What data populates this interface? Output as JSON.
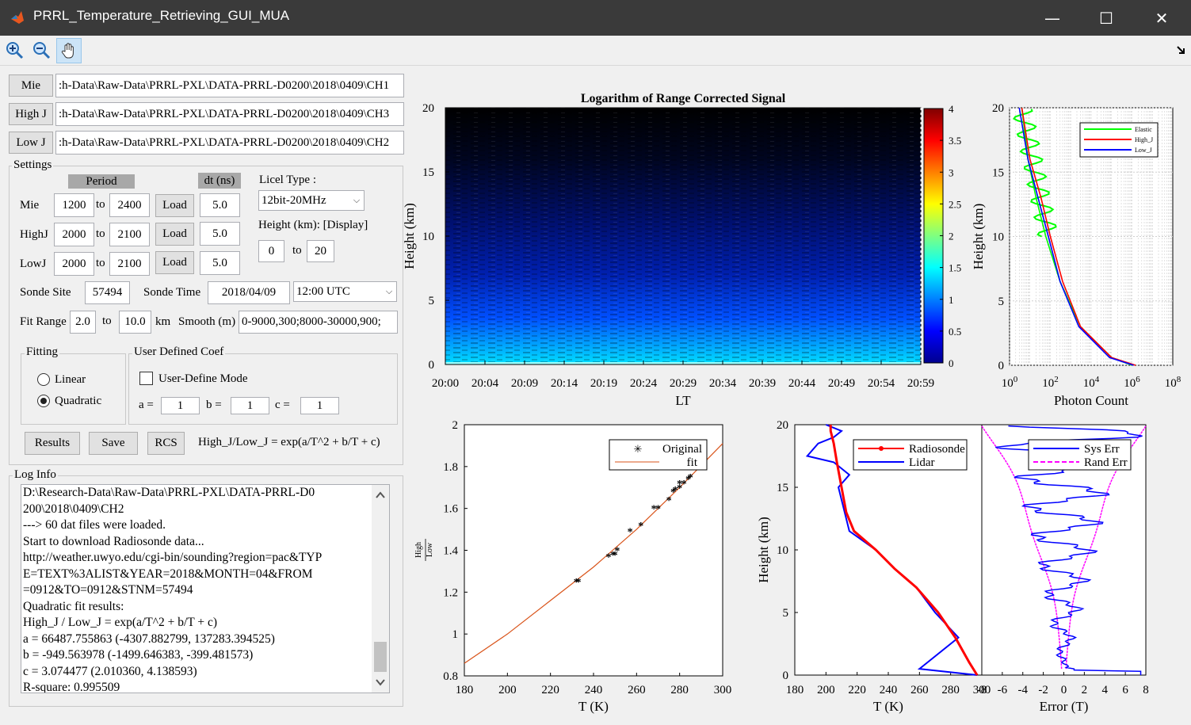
{
  "window": {
    "title": "PRRL_Temperature_Retrieving_GUI_MUA",
    "minimize": "—",
    "maximize": "☐",
    "close": "✕"
  },
  "toolbar": {
    "icons": [
      "zoom-in-icon",
      "zoom-out-icon",
      "pan-hand-icon"
    ]
  },
  "files": [
    {
      "button": "Mie",
      "path": ":h-Data\\Raw-Data\\PRRL-PXL\\DATA-PRRL-D0200\\2018\\0409\\CH1"
    },
    {
      "button": "High J",
      "path": ":h-Data\\Raw-Data\\PRRL-PXL\\DATA-PRRL-D0200\\2018\\0409\\CH3"
    },
    {
      "button": "Low J",
      "path": ":h-Data\\Raw-Data\\PRRL-PXL\\DATA-PRRL-D0200\\2018\\0409\\CH2"
    }
  ],
  "settings": {
    "title": "Settings",
    "period_header": "Period",
    "dt_header": "dt (ns)",
    "to": "to",
    "load_label": "Load",
    "rows": [
      {
        "label": "Mie",
        "from": "1200",
        "to": "2400",
        "dt": "5.0"
      },
      {
        "label": "HighJ",
        "from": "2000",
        "to": "2100",
        "dt": "5.0"
      },
      {
        "label": "LowJ",
        "from": "2000",
        "to": "2100",
        "dt": "5.0"
      }
    ],
    "licel_type_label": "Licel Type :",
    "licel_type_value": "12bit-20MHz",
    "height_label": "Height (km): [Display]",
    "height_from": "0",
    "height_to_label": "to",
    "height_to": "20",
    "sonde_site_label": "Sonde Site",
    "sonde_site": "57494",
    "sonde_time_label": "Sonde Time",
    "sonde_date": "2018/04/09",
    "sonde_hour": "12:00 UTC",
    "fit_range_label": "Fit Range",
    "fit_from": "2.0",
    "fit_to_label": "to",
    "fit_to": "10.0",
    "km_label": "km",
    "smooth_label": "Smooth (m)",
    "smooth_value": "0-9000,300;8000-30000,900;",
    "fitting_title": "Fitting",
    "linear_label": "Linear",
    "quadratic_label": "Quadratic",
    "udc_title": "User Defined Coef",
    "user_define_mode": "User-Define Mode",
    "a_label": "a =",
    "a_value": "1",
    "b_label": "b =",
    "b_value": "1",
    "c_label": "c =",
    "c_value": "1",
    "results_button": "Results",
    "save_button": "Save",
    "rcs_button": "RCS",
    "formula": "High_J/Low_J = exp(a/T^2 + b/T + c)"
  },
  "log": {
    "title": "Log Info",
    "lines": [
      "D:\\Research-Data\\Raw-Data\\PRRL-PXL\\DATA-PRRL-D0",
      "200\\2018\\0409\\CH2",
      "--->  60 dat files were loaded.",
      "Start to download Radiosonde data...",
      "http://weather.uwyo.edu/cgi-bin/sounding?region=pac&TYP",
      "E=TEXT%3ALIST&YEAR=2018&MONTH=04&FROM",
      "=0912&TO=0912&STNM=57494",
      "Quadratic fit results:",
      "High_J / Low_J = exp(a/T^2 + b/T + c)",
      "a = 66487.755863 (-4307.882799, 137283.394525)",
      "b = -949.563978 (-1499.646383, -399.481573)",
      "c = 3.074477 (2.010360, 4.138593)",
      "R-square: 0.995509"
    ]
  },
  "chart_data": [
    {
      "type": "heatmap",
      "title": "Logarithm of Range Corrected Signal",
      "xlabel": "LT",
      "ylabel": "Height (km)",
      "x_ticks": [
        "20:00",
        "20:04",
        "20:09",
        "20:14",
        "20:19",
        "20:24",
        "20:29",
        "20:34",
        "20:39",
        "20:44",
        "20:49",
        "20:54",
        "20:59"
      ],
      "y_ticks": [
        "0",
        "5",
        "10",
        "15",
        "20"
      ],
      "ylim": [
        0,
        20
      ],
      "colorbar_ticks": [
        "0",
        "0.5",
        "1",
        "1.5",
        "2",
        "2.5",
        "3",
        "3.5",
        "4"
      ],
      "clim": [
        0,
        4
      ],
      "colormap": "jet"
    },
    {
      "type": "line",
      "xlabel": "Photon Count",
      "ylabel": "Height (km)",
      "x_scale": "log",
      "xlim": [
        1,
        100000000
      ],
      "ylim": [
        0,
        20
      ],
      "x_ticks": [
        "10^0",
        "10^2",
        "10^4",
        "10^6",
        "10^8"
      ],
      "y_ticks": [
        "0",
        "5",
        "10",
        "15",
        "20"
      ],
      "legend_placement": "top-right",
      "series": [
        {
          "name": "Elastic",
          "color": "#00ff00",
          "x": [
            1000000,
            100000,
            3000,
            300,
            60,
            20,
            8,
            4
          ],
          "y": [
            0,
            0.6,
            3,
            6.5,
            10,
            13,
            16,
            20
          ]
        },
        {
          "name": "High_J",
          "color": "#ff0000",
          "x": [
            1500000,
            100000,
            3000,
            400,
            100,
            35,
            10,
            4
          ],
          "y": [
            0,
            0.6,
            3,
            6.5,
            10,
            13,
            16,
            20
          ]
        },
        {
          "name": "Low_J",
          "color": "#0000ff",
          "x": [
            1200000,
            80000,
            2500,
            300,
            80,
            25,
            8,
            3
          ],
          "y": [
            0,
            0.6,
            3,
            6.5,
            10,
            13,
            16,
            20
          ]
        }
      ]
    },
    {
      "type": "scatter",
      "xlabel": "T (K)",
      "ylabel": "High_J / Low_J",
      "xlim": [
        180,
        300
      ],
      "ylim": [
        0.8,
        2
      ],
      "x_ticks": [
        "180",
        "200",
        "220",
        "240",
        "260",
        "280",
        "300"
      ],
      "y_ticks": [
        "0.8",
        "1",
        "1.2",
        "1.4",
        "1.6",
        "1.8",
        "2"
      ],
      "legend_placement": "top-right",
      "series": [
        {
          "name": "Original",
          "marker": "*",
          "color": "#000000",
          "x": [
            232,
            233,
            247,
            249,
            250,
            251,
            257,
            262,
            268,
            270,
            275,
            277,
            278,
            280,
            280,
            282,
            284,
            285
          ],
          "y": [
            1.25,
            1.25,
            1.37,
            1.38,
            1.38,
            1.4,
            1.49,
            1.52,
            1.6,
            1.6,
            1.64,
            1.68,
            1.69,
            1.7,
            1.72,
            1.72,
            1.74,
            1.75
          ]
        },
        {
          "name": "fit",
          "color": "#d95319",
          "x": [
            180,
            200,
            220,
            240,
            260,
            280,
            300
          ],
          "y": [
            0.86,
            1.0,
            1.16,
            1.32,
            1.5,
            1.7,
            1.91
          ]
        }
      ]
    },
    {
      "type": "line",
      "xlabel": "T (K)",
      "ylabel": "Height (km)",
      "xlim": [
        180,
        300
      ],
      "ylim": [
        0,
        20
      ],
      "x_ticks": [
        "180",
        "200",
        "220",
        "240",
        "260",
        "280",
        "300"
      ],
      "y_ticks": [
        "0",
        "5",
        "10",
        "15",
        "20"
      ],
      "legend_placement": "top-right",
      "series": [
        {
          "name": "Radiosonde",
          "color": "#ff0000",
          "x": [
            297,
            292,
            283,
            272,
            258,
            244,
            232,
            218,
            213,
            210,
            207,
            205,
            203,
            203
          ],
          "y": [
            0,
            1,
            3,
            5,
            7,
            8.5,
            10,
            11.5,
            13,
            15,
            17,
            18.5,
            19.5,
            20
          ]
        },
        {
          "name": "Lidar",
          "color": "#0000ff",
          "x": [
            297,
            260,
            285,
            270,
            258,
            244,
            232,
            215,
            212,
            208,
            215,
            205,
            188,
            195,
            205,
            210,
            200
          ],
          "y": [
            0,
            0.5,
            3,
            5,
            7,
            8.5,
            10,
            11.5,
            13,
            15,
            16,
            17,
            17.5,
            18.5,
            19,
            19.5,
            20
          ]
        }
      ]
    },
    {
      "type": "line",
      "xlabel": "Error (T)",
      "xlim": [
        -8,
        8
      ],
      "ylim": [
        0,
        20
      ],
      "x_ticks": [
        "-8",
        "-6",
        "-4",
        "-2",
        "0",
        "2",
        "4",
        "6",
        "8"
      ],
      "legend_placement": "top-right",
      "series": [
        {
          "name": "Sys Err",
          "color": "#0000ff"
        },
        {
          "name": "Rand Err",
          "color": "#ff00ff"
        }
      ]
    }
  ]
}
